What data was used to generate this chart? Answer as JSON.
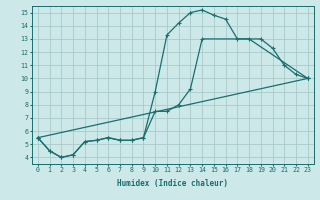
{
  "xlabel": "Humidex (Indice chaleur)",
  "ylabel": "",
  "xlim": [
    -0.5,
    23.5
  ],
  "ylim": [
    3.5,
    15.5
  ],
  "xticks": [
    0,
    1,
    2,
    3,
    4,
    5,
    6,
    7,
    8,
    9,
    10,
    11,
    12,
    13,
    14,
    15,
    16,
    17,
    18,
    19,
    20,
    21,
    22,
    23
  ],
  "yticks": [
    4,
    5,
    6,
    7,
    8,
    9,
    10,
    11,
    12,
    13,
    14,
    15
  ],
  "bg_color": "#cce8e8",
  "line_color": "#1a6e6e",
  "grid_color": "#aacaca",
  "line1_x": [
    0,
    1,
    2,
    3,
    4,
    5,
    6,
    7,
    8,
    9,
    10,
    11,
    12,
    13,
    14,
    15,
    16,
    17,
    18,
    23
  ],
  "line1_y": [
    5.5,
    4.5,
    4.0,
    4.2,
    5.2,
    5.3,
    5.5,
    5.3,
    5.3,
    5.5,
    9.0,
    13.3,
    14.2,
    15.0,
    15.2,
    14.8,
    14.5,
    13.0,
    13.0,
    10.0
  ],
  "line2_x": [
    0,
    1,
    2,
    3,
    4,
    5,
    6,
    7,
    8,
    9,
    10,
    11,
    12,
    13,
    14,
    19,
    20,
    21,
    22,
    23
  ],
  "line2_y": [
    5.5,
    4.5,
    4.0,
    4.2,
    5.2,
    5.3,
    5.5,
    5.3,
    5.3,
    5.5,
    7.5,
    7.5,
    8.0,
    9.2,
    13.0,
    13.0,
    12.3,
    11.0,
    10.3,
    10.0
  ],
  "line3_x": [
    0,
    23
  ],
  "line3_y": [
    5.5,
    10.0
  ]
}
